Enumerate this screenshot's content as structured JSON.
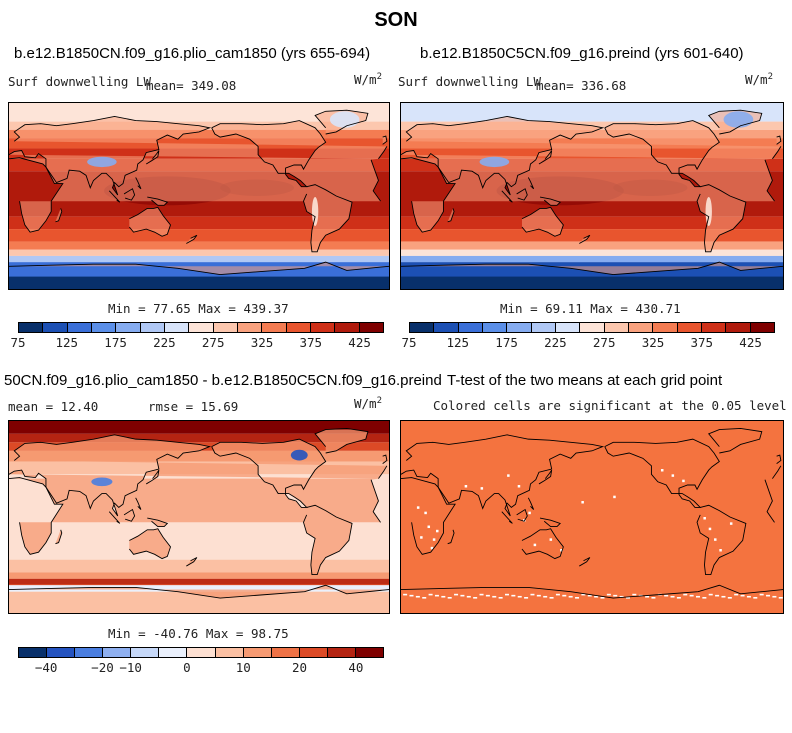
{
  "figure": {
    "title": "SON"
  },
  "panels": [
    {
      "id": "p1",
      "heading": "b.e12.B1850CN.f09_g16.plio_cam1850 (yrs 655-694)",
      "variable": "Surf downwelling LW",
      "mean_label": "mean= 349.08",
      "units": "W/m",
      "units_sup": "2",
      "minmax": "Min =  77.65 Max = 439.37"
    },
    {
      "id": "p2",
      "heading": "b.e12.B1850C5CN.f09_g16.preind (yrs 601-640)",
      "variable": "Surf downwelling LW",
      "mean_label": "mean= 336.68",
      "units": "W/m",
      "units_sup": "2",
      "minmax": "Min =  69.11 Max = 430.71"
    },
    {
      "id": "p3",
      "heading": "50CN.f09_g16.plio_cam1850 - b.e12.B1850C5CN.f09_g16.preind",
      "mean_label": "mean =  12.40",
      "rmse_label": "rmse =  15.69",
      "units": "W/m",
      "units_sup": "2",
      "minmax": "Min = -40.76 Max =  98.75"
    },
    {
      "id": "p4",
      "heading": "T-test of the two means at each grid point",
      "subheading": "Colored cells are significant at the 0.05 level"
    }
  ],
  "chart_data": [
    {
      "type": "heatmap",
      "panel": "p1",
      "title": "b.e12.B1850CN.f09_g16.plio_cam1850 (yrs 655-694)",
      "variable": "Surf downwelling LW",
      "units": "W/m2",
      "mean": 349.08,
      "min": 77.65,
      "max": 439.37,
      "colorbar": {
        "levels": [
          75,
          100,
          125,
          150,
          175,
          200,
          225,
          250,
          275,
          300,
          325,
          350,
          375,
          400,
          425,
          450
        ],
        "tick_labels": [
          "75",
          "125",
          "175",
          "225",
          "275",
          "325",
          "375",
          "425"
        ]
      }
    },
    {
      "type": "heatmap",
      "panel": "p2",
      "title": "b.e12.B1850C5CN.f09_g16.preind (yrs 601-640)",
      "variable": "Surf downwelling LW",
      "units": "W/m2",
      "mean": 336.68,
      "min": 69.11,
      "max": 430.71,
      "colorbar": {
        "levels": [
          75,
          100,
          125,
          150,
          175,
          200,
          225,
          250,
          275,
          300,
          325,
          350,
          375,
          400,
          425,
          450
        ],
        "tick_labels": [
          "75",
          "125",
          "175",
          "225",
          "275",
          "325",
          "375",
          "425"
        ]
      }
    },
    {
      "type": "heatmap",
      "panel": "p3",
      "title": "50CN.f09_g16.plio_cam1850 - b.e12.B1850C5CN.f09_g16.preind",
      "units": "W/m2",
      "mean": 12.4,
      "rmse": 15.69,
      "min": -40.76,
      "max": 98.75,
      "colorbar": {
        "levels": [
          -50,
          -40,
          -30,
          -20,
          -10,
          -5,
          0,
          5,
          10,
          15,
          20,
          30,
          40,
          50
        ],
        "tick_labels": [
          "-40",
          "-20",
          "-10",
          "0",
          "10",
          "20",
          "40"
        ]
      }
    },
    {
      "type": "heatmap",
      "panel": "p4",
      "title": "T-test of the two means at each grid point",
      "subtitle": "Colored cells are significant at the 0.05 level",
      "significant_color": "#f4733f"
    }
  ],
  "colors": {
    "abs_scale": [
      "#08306b",
      "#1c50b4",
      "#3a6fd8",
      "#5b8fe8",
      "#86acf0",
      "#b0c8f5",
      "#d8e4fa",
      "#fde4d8",
      "#fcc7ae",
      "#f9a27f",
      "#f47c52",
      "#e8552e",
      "#cf3018",
      "#b01a0c",
      "#7f0000"
    ],
    "diff_scale": [
      "#08306b",
      "#2453c0",
      "#4a7ee0",
      "#8fb0f0",
      "#c6d8f8",
      "#eaf0fc",
      "#fde0d2",
      "#fbc0a3",
      "#f69a72",
      "#ee7246",
      "#dc4a26",
      "#b42412",
      "#7f0000"
    ],
    "ttest_fill": "#f4733f",
    "land_line": "#000000"
  }
}
